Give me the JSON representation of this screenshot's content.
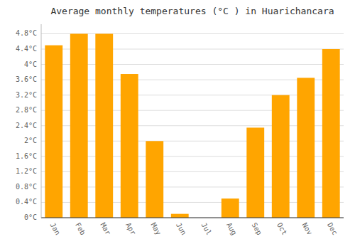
{
  "chart_data": {
    "type": "bar",
    "title": "Average monthly temperatures (°C ) in Huarichancara",
    "categories": [
      "Jan",
      "Feb",
      "Mar",
      "Apr",
      "May",
      "Jun",
      "Jul",
      "Aug",
      "Sep",
      "Oct",
      "Nov",
      "Dec"
    ],
    "values": [
      4.5,
      4.8,
      4.8,
      3.75,
      2.0,
      0.1,
      0.0,
      0.5,
      2.35,
      3.2,
      3.65,
      4.4
    ],
    "color": "#FFA500",
    "ylim": [
      0,
      5.05
    ],
    "yticks": [
      {
        "value": 0,
        "label": "0°C"
      },
      {
        "value": 0.4,
        "label": "0.4°C"
      },
      {
        "value": 0.8,
        "label": "0.8°C"
      },
      {
        "value": 1.2,
        "label": "1.2°C"
      },
      {
        "value": 1.6,
        "label": "1.6°C"
      },
      {
        "value": 2.0,
        "label": "2°C"
      },
      {
        "value": 2.4,
        "label": "2.4°C"
      },
      {
        "value": 2.8,
        "label": "2.8°C"
      },
      {
        "value": 3.2,
        "label": "3.2°C"
      },
      {
        "value": 3.6,
        "label": "3.6°C"
      },
      {
        "value": 4.0,
        "label": "4°C"
      },
      {
        "value": 4.4,
        "label": "4.4°C"
      },
      {
        "value": 4.8,
        "label": "4.8°C"
      }
    ],
    "grid": true
  }
}
